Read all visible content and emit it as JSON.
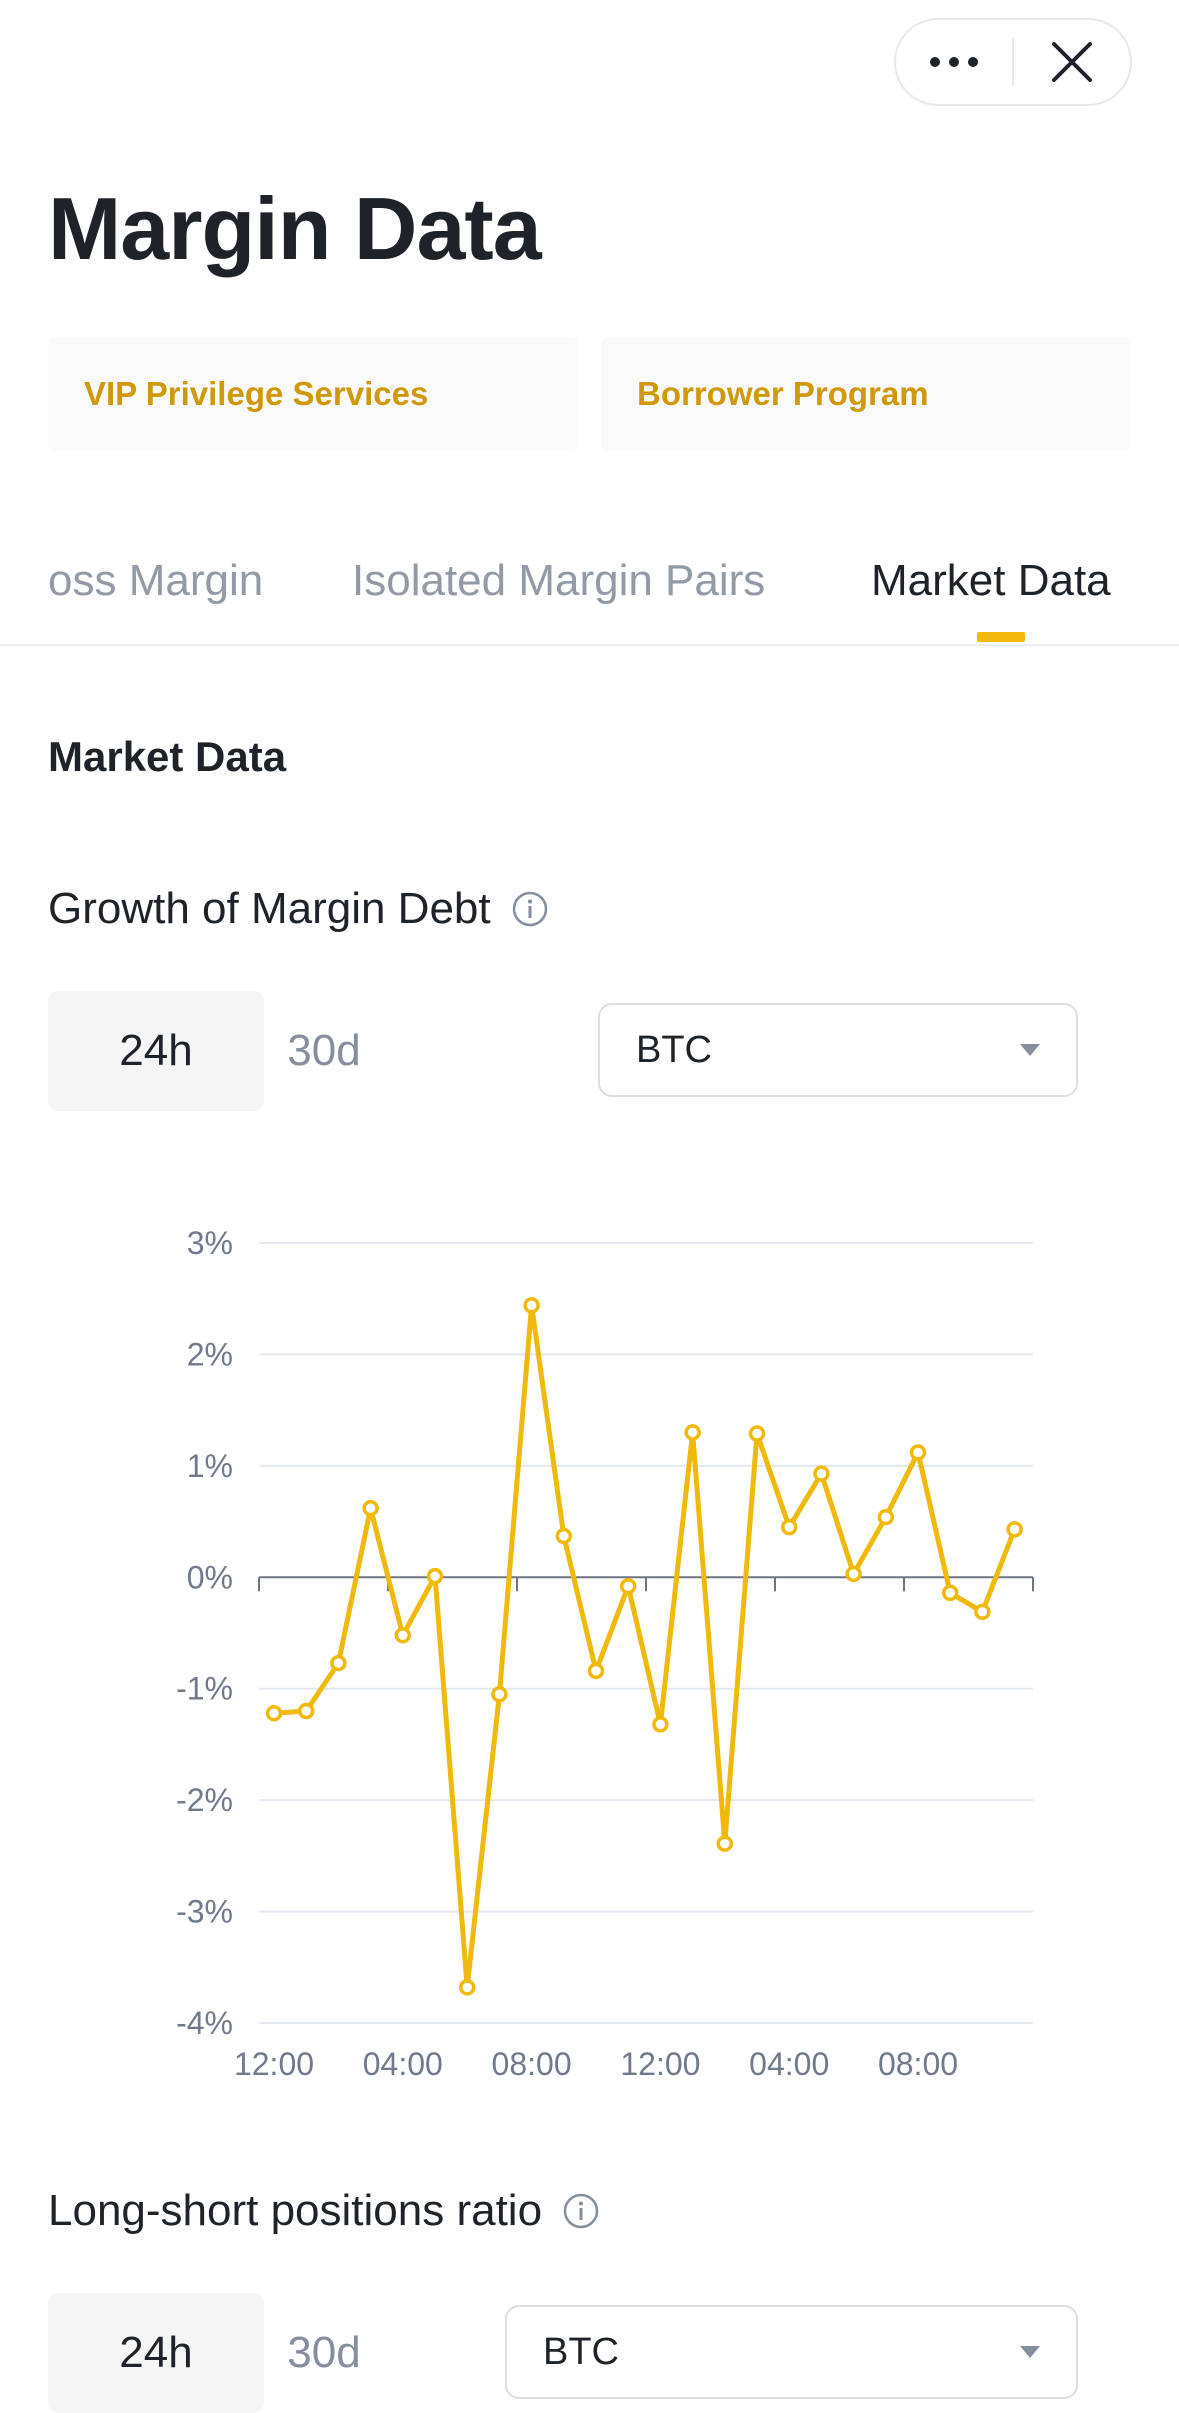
{
  "header": {
    "title": "Margin Data"
  },
  "promos": [
    {
      "label": "VIP Privilege Services"
    },
    {
      "label": "Borrower Program"
    }
  ],
  "tabs": [
    {
      "label": "oss Margin"
    },
    {
      "label": "Isolated Margin Pairs"
    },
    {
      "label": "Market Data",
      "active": true
    }
  ],
  "section": {
    "title": "Market Data"
  },
  "growth": {
    "title": "Growth of Margin Debt",
    "periods": [
      "24h",
      "30d"
    ],
    "selected_period": "24h",
    "asset": "BTC"
  },
  "ratio": {
    "title": "Long-short positions ratio",
    "periods": [
      "24h",
      "30d"
    ],
    "selected_period": "24h",
    "asset": "BTC"
  },
  "colors": {
    "accent": "#f0b90b",
    "accent_text": "#d0980b",
    "line": "#f0b90b"
  },
  "icons": {
    "more": "more-dots-icon",
    "close": "close-icon",
    "info": "info-icon",
    "dropdown": "caret-down-icon"
  },
  "chart_data": {
    "type": "line",
    "ylabel_format": "percent",
    "ylim": [
      -4,
      3
    ],
    "yticks": [
      "3%",
      "2%",
      "1%",
      "0%",
      "-1%",
      "-2%",
      "-3%",
      "-4%"
    ],
    "xticks": [
      "12:00",
      "04:00",
      "08:00",
      "12:00",
      "04:00",
      "08:00"
    ],
    "grid": true,
    "series": [
      {
        "values": [
          -1.22,
          -1.2,
          -0.77,
          0.62,
          -0.52,
          0.01,
          -3.68,
          -1.05,
          2.44,
          0.37,
          -0.84,
          -0.08,
          -1.32,
          1.3,
          -2.39,
          1.29,
          0.45,
          0.93,
          0.03,
          0.54,
          1.12,
          -0.14,
          -0.31,
          0.43
        ]
      }
    ]
  }
}
